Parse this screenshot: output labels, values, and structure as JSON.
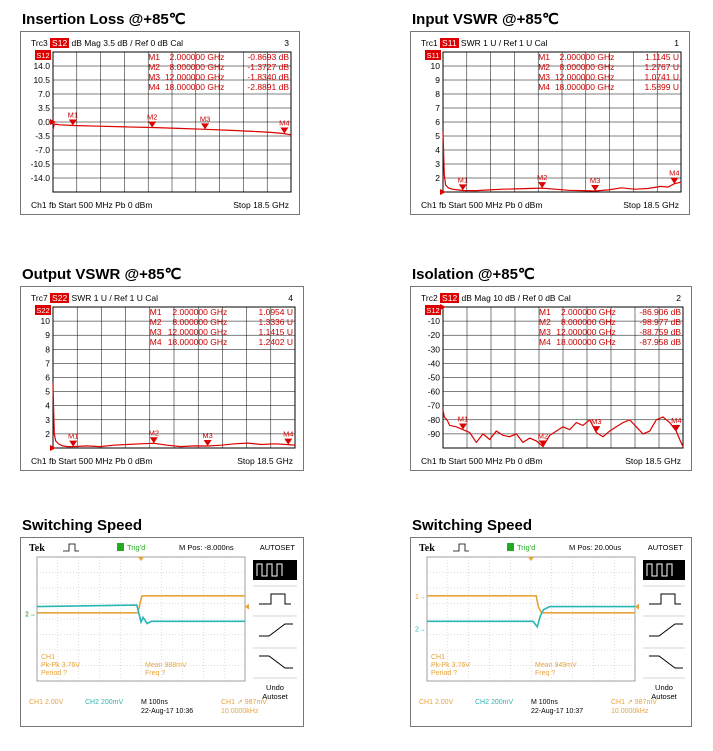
{
  "panels": [
    {
      "id": "il",
      "title": "Insertion Loss @+85℃",
      "trace": "Trc3",
      "param": "S12",
      "format": "dB Mag",
      "scale": "3.5 dB /",
      "ref": "Ref 0 dB",
      "cal": "Cal",
      "chnum": "3",
      "footer": {
        "ch": "Ch1",
        "fb": "fb",
        "start": "Start  500 MHz",
        "pb": "Pb   0 dBm",
        "stop": "Stop  18.5 GHz"
      },
      "markers": [
        {
          "id": "M1",
          "freq": "2.000000 GHz",
          "val": "-0.8693 dB"
        },
        {
          "id": "M2",
          "freq": "8.000000 GHz",
          "val": "-1.3727 dB"
        },
        {
          "id": "M3",
          "freq": "12.000000 GHz",
          "val": "-1.8340 dB"
        },
        {
          "id": "M4",
          "freq": "18.000000 GHz",
          "val": "-2.8891 dB"
        }
      ]
    },
    {
      "id": "ivswr",
      "title": "Input VSWR @+85℃",
      "trace": "Trc1",
      "param": "S11",
      "format": "SWR",
      "scale": "1 U /",
      "ref": "Ref 1 U",
      "cal": "Cal",
      "chnum": "1",
      "footer": {
        "ch": "Ch1",
        "fb": "fb",
        "start": "Start  500 MHz",
        "pb": "Pb   0 dBm",
        "stop": "Stop  18.5 GHz"
      },
      "markers": [
        {
          "id": "M1",
          "freq": "2.000000 GHz",
          "val": "1.1145 U"
        },
        {
          "id": "M2",
          "freq": "8.000000 GHz",
          "val": "1.2767 U"
        },
        {
          "id": "M3",
          "freq": "12.000000 GHz",
          "val": "1.0741 U"
        },
        {
          "id": "M4",
          "freq": "18.000000 GHz",
          "val": "1.5899 U"
        }
      ]
    },
    {
      "id": "ovswr",
      "title": "Output VSWR @+85℃",
      "trace": "Trc7",
      "param": "S22",
      "format": "SWR",
      "scale": "1 U /",
      "ref": "Ref 1 U",
      "cal": "Cal",
      "chnum": "4",
      "footer": {
        "ch": "Ch1",
        "fb": "fb",
        "start": "Start  500 MHz",
        "pb": "Pb   0 dBm",
        "stop": "Stop  18.5 GHz"
      },
      "markers": [
        {
          "id": "M1",
          "freq": "2.000000 GHz",
          "val": "1.0954 U"
        },
        {
          "id": "M2",
          "freq": "8.000000 GHz",
          "val": "1.3336 U"
        },
        {
          "id": "M3",
          "freq": "12.000000 GHz",
          "val": "1.1415 U"
        },
        {
          "id": "M4",
          "freq": "18.000000 GHz",
          "val": "1.2402 U"
        }
      ]
    },
    {
      "id": "iso",
      "title": "Isolation @+85℃",
      "trace": "Trc2",
      "param": "S12",
      "format": "dB Mag",
      "scale": "10 dB /",
      "ref": "Ref 0 dB",
      "cal": "Cal",
      "chnum": "2",
      "footer": {
        "ch": "Ch1",
        "fb": "fb",
        "start": "Start  500 MHz",
        "pb": "Pb   0 dBm",
        "stop": "Stop  18.5 GHz"
      },
      "markers": [
        {
          "id": "M1",
          "freq": "2.000000 GHz",
          "val": "-86.906 dB"
        },
        {
          "id": "M2",
          "freq": "8.000000 GHz",
          "val": "-98.977 dB"
        },
        {
          "id": "M3",
          "freq": "12.000000 GHz",
          "val": "-88.759 dB"
        },
        {
          "id": "M4",
          "freq": "18.000000 GHz",
          "val": "-87.958 dB"
        }
      ]
    }
  ],
  "chart_data": [
    {
      "type": "line",
      "title": "Insertion Loss @+85℃",
      "xlabel": "",
      "ylabel": "",
      "xlim": [
        0.5,
        18.5
      ],
      "ylim": [
        -17.5,
        17.5
      ],
      "yticks": [
        14.0,
        10.5,
        7.0,
        3.5,
        0.0,
        -3.5,
        -7.0,
        -10.5,
        -14.0
      ],
      "yticklabels": [
        "14.0",
        "10.5",
        "7.0",
        "3.5",
        "0.0",
        "-3.5",
        "-7.0",
        "-10.5",
        "-14.0"
      ],
      "ref_value": 0,
      "grid": true,
      "series": [
        {
          "name": "S12",
          "x": [
            0.5,
            0.6,
            0.8,
            1.0,
            2.0,
            4.0,
            6.0,
            8.0,
            10.0,
            12.0,
            14.0,
            16.0,
            17.0,
            18.0,
            18.5
          ],
          "y": [
            -2.0,
            -0.5,
            -0.6,
            -0.7,
            -0.87,
            -1.05,
            -1.22,
            -1.37,
            -1.6,
            -1.83,
            -2.1,
            -2.4,
            -2.6,
            -2.89,
            -3.2
          ]
        }
      ],
      "markers": [
        {
          "label": "M1",
          "x": 2,
          "y": -0.8693
        },
        {
          "label": "M2",
          "x": 8,
          "y": -1.3727
        },
        {
          "label": "M3",
          "x": 12,
          "y": -1.834
        },
        {
          "label": "M4",
          "x": 18,
          "y": -2.8891
        }
      ]
    },
    {
      "type": "line",
      "title": "Input VSWR @+85℃",
      "xlabel": "",
      "ylabel": "",
      "xlim": [
        0.5,
        18.5
      ],
      "ylim": [
        1,
        11
      ],
      "yticks": [
        10,
        9,
        8,
        7,
        6,
        5,
        4,
        3,
        2
      ],
      "yticklabels": [
        "10",
        "9",
        "8",
        "7",
        "6",
        "5",
        "4",
        "3",
        "2"
      ],
      "ref_value": 1,
      "grid": true,
      "series": [
        {
          "name": "S11",
          "x": [
            0.5,
            0.55,
            0.6,
            0.7,
            0.9,
            1.2,
            1.6,
            2.0,
            3.0,
            4.0,
            5.0,
            6.0,
            7.0,
            8.0,
            9.0,
            10.0,
            11.0,
            12.0,
            13.0,
            14.0,
            15.0,
            16.0,
            17.0,
            17.5,
            18.0,
            18.5
          ],
          "y": [
            5.3,
            3.6,
            2.2,
            1.5,
            1.3,
            1.2,
            1.15,
            1.11,
            1.1,
            1.15,
            1.2,
            1.22,
            1.25,
            1.28,
            1.2,
            1.12,
            1.1,
            1.07,
            1.15,
            1.3,
            1.2,
            1.25,
            1.4,
            1.35,
            1.59,
            1.7
          ]
        }
      ],
      "markers": [
        {
          "label": "M1",
          "x": 2,
          "y": 1.1145
        },
        {
          "label": "M2",
          "x": 8,
          "y": 1.2767
        },
        {
          "label": "M3",
          "x": 12,
          "y": 1.0741
        },
        {
          "label": "M4",
          "x": 18,
          "y": 1.5899
        }
      ]
    },
    {
      "type": "line",
      "title": "Output VSWR @+85℃",
      "xlabel": "",
      "ylabel": "",
      "xlim": [
        0.5,
        18.5
      ],
      "ylim": [
        1,
        11
      ],
      "yticks": [
        10,
        9,
        8,
        7,
        6,
        5,
        4,
        3,
        2
      ],
      "yticklabels": [
        "10",
        "9",
        "8",
        "7",
        "6",
        "5",
        "4",
        "3",
        "2"
      ],
      "ref_value": 1,
      "grid": true,
      "series": [
        {
          "name": "S22",
          "x": [
            0.5,
            0.55,
            0.6,
            0.7,
            0.9,
            1.2,
            1.6,
            2.0,
            3.0,
            4.0,
            5.0,
            6.0,
            7.0,
            8.0,
            9.0,
            10.0,
            11.0,
            12.0,
            13.0,
            14.0,
            15.0,
            16.0,
            17.0,
            18.0,
            18.5
          ],
          "y": [
            5.6,
            3.5,
            2.0,
            1.5,
            1.3,
            1.15,
            1.1,
            1.1,
            1.15,
            1.1,
            1.2,
            1.25,
            1.3,
            1.33,
            1.2,
            1.1,
            1.15,
            1.14,
            1.2,
            1.3,
            1.35,
            1.25,
            1.3,
            1.24,
            1.2
          ]
        }
      ],
      "markers": [
        {
          "label": "M1",
          "x": 2,
          "y": 1.0954
        },
        {
          "label": "M2",
          "x": 8,
          "y": 1.3336
        },
        {
          "label": "M3",
          "x": 12,
          "y": 1.1415
        },
        {
          "label": "M4",
          "x": 18,
          "y": 1.2402
        }
      ]
    },
    {
      "type": "line",
      "title": "Isolation @+85℃",
      "xlabel": "",
      "ylabel": "",
      "xlim": [
        0.5,
        18.5
      ],
      "ylim": [
        -100,
        0
      ],
      "yticks": [
        -10,
        -20,
        -30,
        -40,
        -50,
        -60,
        -70,
        -80,
        -90
      ],
      "yticklabels": [
        "-10",
        "-20",
        "-30",
        "-40",
        "-50",
        "-60",
        "-70",
        "-80",
        "-90"
      ],
      "ref_value": 0,
      "grid": true,
      "series": [
        {
          "name": "S12",
          "x": [
            0.5,
            0.6,
            0.8,
            1.0,
            1.5,
            2.0,
            2.5,
            3.0,
            3.5,
            4.0,
            4.5,
            5.0,
            5.5,
            6.0,
            6.5,
            7.0,
            7.5,
            8.0,
            8.5,
            9.0,
            9.5,
            10.0,
            10.5,
            11.0,
            11.5,
            12.0,
            12.5,
            13.0,
            13.5,
            14.0,
            14.5,
            15.0,
            15.5,
            16.0,
            16.5,
            17.0,
            17.5,
            18.0,
            18.3,
            18.5
          ],
          "y": [
            -73,
            -78,
            -80,
            -84,
            -85,
            -87,
            -89,
            -96,
            -90,
            -94,
            -88,
            -91,
            -92,
            -90,
            -96,
            -93,
            -95,
            -99,
            -91,
            -88,
            -85,
            -87,
            -82,
            -84,
            -80,
            -89,
            -92,
            -88,
            -85,
            -82,
            -80,
            -85,
            -90,
            -88,
            -80,
            -78,
            -82,
            -88,
            -95,
            -99
          ]
        }
      ],
      "markers": [
        {
          "label": "M1",
          "x": 2,
          "y": -86.906
        },
        {
          "label": "M2",
          "x": 8,
          "y": -98.977
        },
        {
          "label": "M3",
          "x": 12,
          "y": -88.759
        },
        {
          "label": "M4",
          "x": 18,
          "y": -87.958
        }
      ]
    },
    {
      "type": "line",
      "title": "Switching Speed",
      "xlabel": "",
      "ylabel": "",
      "xlim": [
        -5,
        5
      ],
      "ylim": [
        -4,
        4
      ],
      "grid": true,
      "series": [
        {
          "name": "CH1",
          "color": "#e8a33a",
          "x": [
            -5,
            -0.15,
            -0.05,
            0.05,
            5
          ],
          "y": [
            0.4,
            0.4,
            1.0,
            1.5,
            1.5
          ]
        },
        {
          "name": "CH2",
          "color": "#2ab5b5",
          "x": [
            -5,
            -0.2,
            0.0,
            0.1,
            0.3,
            0.5,
            5
          ],
          "y": [
            0.8,
            0.9,
            -0.2,
            0.1,
            -0.3,
            -0.15,
            -0.15
          ]
        }
      ]
    },
    {
      "type": "line",
      "title": "Switching Speed",
      "xlabel": "",
      "ylabel": "",
      "xlim": [
        -5,
        5
      ],
      "ylim": [
        -4,
        4
      ],
      "grid": true,
      "series": [
        {
          "name": "CH1",
          "color": "#e8a33a",
          "x": [
            -5,
            0.25,
            0.35,
            0.5,
            5
          ],
          "y": [
            1.5,
            1.5,
            0.8,
            0.4,
            0.4
          ]
        },
        {
          "name": "CH2",
          "color": "#2ab5b5",
          "x": [
            -5,
            0.1,
            0.3,
            0.45,
            0.6,
            0.9,
            5
          ],
          "y": [
            -0.15,
            -0.15,
            -0.5,
            0.2,
            0.6,
            0.8,
            0.8
          ]
        }
      ]
    }
  ],
  "scopes": [
    {
      "title": "Switching Speed",
      "brand": "Tek",
      "trig": "Trig'd",
      "mpos": "M Pos: -8.000ns",
      "autoset": "AUTOSET",
      "undo": [
        "Undo",
        "Autoset"
      ],
      "ch1_marker": "1→",
      "ch2_marker": "2→",
      "meas_left": [
        "CH1",
        "Pk-Pk 3.76V",
        "Period ?"
      ],
      "meas_mid": [
        "Mean 988mV",
        "Freq ?"
      ],
      "bottom": {
        "ch1": "CH1  2.00V",
        "ch2": "CH2  200mV",
        "time": "M 100ns",
        "date": "22-Aug-17 10:36",
        "trig1": "CH1 ↗ 987mV",
        "trig2": "10.0000kHz"
      }
    },
    {
      "title": "Switching Speed",
      "brand": "Tek",
      "trig": "Trig'd",
      "mpos": "M Pos: 20.00us",
      "autoset": "AUTOSET",
      "undo": [
        "Undo",
        "Autoset"
      ],
      "ch1_marker": "1→",
      "ch2_marker": "2→",
      "meas_left": [
        "CH1",
        "Pk-Pk 3.76V",
        "Period ?"
      ],
      "meas_mid": [
        "Mean 949mV",
        "Freq ?"
      ],
      "bottom": {
        "ch1": "CH1  2.00V",
        "ch2": "CH2  200mV",
        "time": "M 100ns",
        "date": "22-Aug-17 10:37",
        "trig1": "CH1 ↗ 987mV",
        "trig2": "10.0000kHz"
      }
    }
  ]
}
